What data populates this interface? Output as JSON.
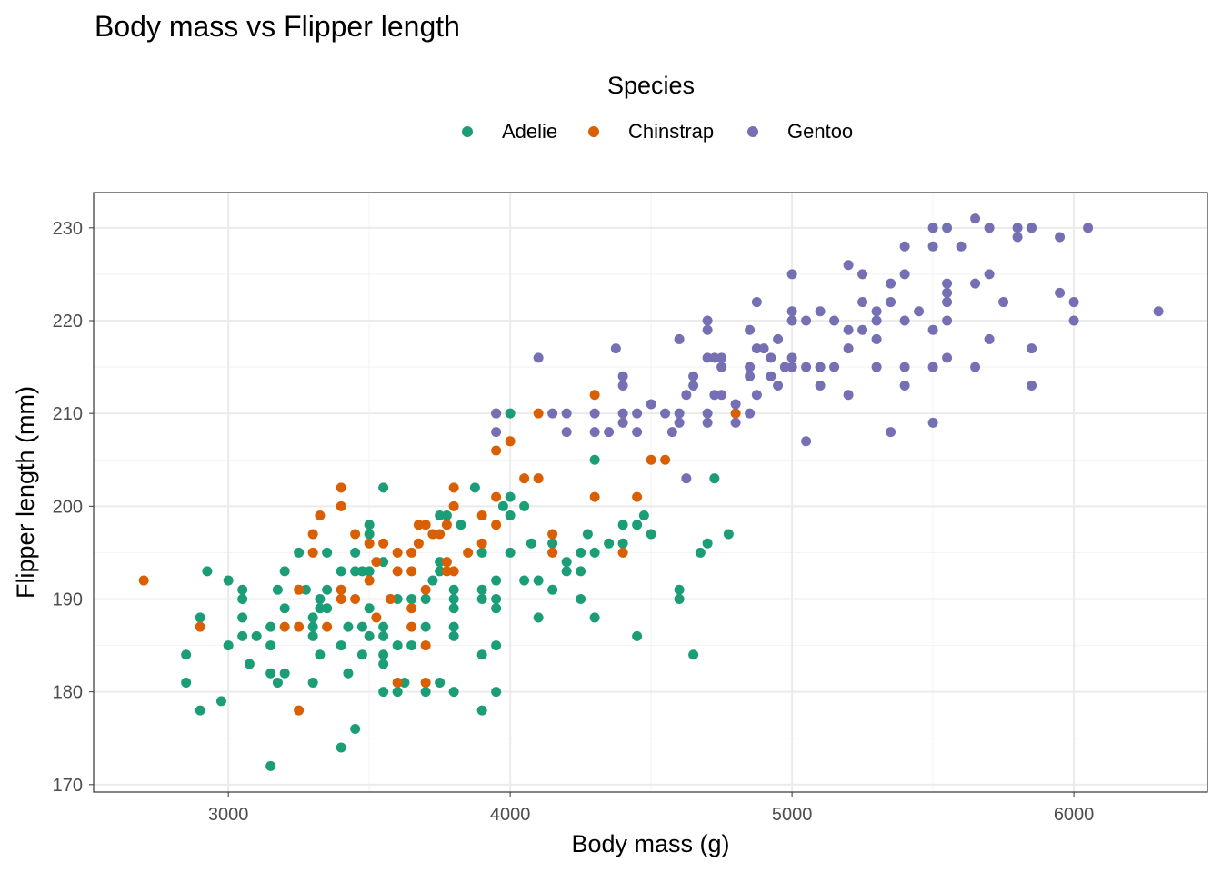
{
  "chart_data": {
    "type": "scatter",
    "title": "Body mass vs Flipper length",
    "xlabel": "Body mass (g)",
    "ylabel": "Flipper length (mm)",
    "xlim": [
      2522,
      6474
    ],
    "ylim": [
      169.2,
      233.8
    ],
    "xticks": [
      3000,
      4000,
      5000,
      6000
    ],
    "yticks": [
      170,
      180,
      190,
      200,
      210,
      220,
      230
    ],
    "grid": true,
    "legend": {
      "title": "Species",
      "position": "top"
    },
    "series": [
      {
        "name": "Adelie",
        "color": "#1B9E77",
        "points": [
          [
            2850,
            184
          ],
          [
            2850,
            181
          ],
          [
            2900,
            188
          ],
          [
            2900,
            178
          ],
          [
            2925,
            193
          ],
          [
            2975,
            179
          ],
          [
            3000,
            192
          ],
          [
            3000,
            185
          ],
          [
            3050,
            191
          ],
          [
            3050,
            190
          ],
          [
            3050,
            188
          ],
          [
            3050,
            186
          ],
          [
            3075,
            183
          ],
          [
            3100,
            186
          ],
          [
            3150,
            187
          ],
          [
            3150,
            185
          ],
          [
            3150,
            182
          ],
          [
            3150,
            172
          ],
          [
            3175,
            191
          ],
          [
            3175,
            181
          ],
          [
            3200,
            193
          ],
          [
            3200,
            189
          ],
          [
            3200,
            182
          ],
          [
            3250,
            195
          ],
          [
            3275,
            191
          ],
          [
            3300,
            188
          ],
          [
            3300,
            187
          ],
          [
            3300,
            186
          ],
          [
            3300,
            181
          ],
          [
            3325,
            190
          ],
          [
            3325,
            189
          ],
          [
            3325,
            184
          ],
          [
            3350,
            195
          ],
          [
            3350,
            191
          ],
          [
            3350,
            189
          ],
          [
            3400,
            193
          ],
          [
            3400,
            185
          ],
          [
            3400,
            174
          ],
          [
            3425,
            187
          ],
          [
            3425,
            182
          ],
          [
            3450,
            195
          ],
          [
            3450,
            193
          ],
          [
            3450,
            176
          ],
          [
            3475,
            193
          ],
          [
            3475,
            187
          ],
          [
            3475,
            184
          ],
          [
            3500,
            198
          ],
          [
            3500,
            197
          ],
          [
            3500,
            193
          ],
          [
            3500,
            189
          ],
          [
            3500,
            186
          ],
          [
            3550,
            202
          ],
          [
            3550,
            194
          ],
          [
            3550,
            187
          ],
          [
            3550,
            186
          ],
          [
            3550,
            184
          ],
          [
            3550,
            183
          ],
          [
            3550,
            180
          ],
          [
            3600,
            190
          ],
          [
            3600,
            185
          ],
          [
            3600,
            180
          ],
          [
            3625,
            181
          ],
          [
            3650,
            190
          ],
          [
            3650,
            185
          ],
          [
            3700,
            190
          ],
          [
            3700,
            187
          ],
          [
            3700,
            180
          ],
          [
            3725,
            192
          ],
          [
            3750,
            199
          ],
          [
            3750,
            194
          ],
          [
            3750,
            193
          ],
          [
            3750,
            181
          ],
          [
            3775,
            199
          ],
          [
            3800,
            191
          ],
          [
            3800,
            190
          ],
          [
            3800,
            189
          ],
          [
            3800,
            187
          ],
          [
            3800,
            186
          ],
          [
            3800,
            180
          ],
          [
            3825,
            198
          ],
          [
            3875,
            202
          ],
          [
            3900,
            195
          ],
          [
            3900,
            191
          ],
          [
            3900,
            190
          ],
          [
            3900,
            184
          ],
          [
            3900,
            178
          ],
          [
            3950,
            192
          ],
          [
            3950,
            190
          ],
          [
            3950,
            189
          ],
          [
            3950,
            185
          ],
          [
            3950,
            180
          ],
          [
            3975,
            200
          ],
          [
            4000,
            210
          ],
          [
            4000,
            201
          ],
          [
            4000,
            199
          ],
          [
            4000,
            195
          ],
          [
            4050,
            200
          ],
          [
            4050,
            192
          ],
          [
            4075,
            196
          ],
          [
            4100,
            192
          ],
          [
            4100,
            188
          ],
          [
            4150,
            196
          ],
          [
            4150,
            191
          ],
          [
            4200,
            194
          ],
          [
            4200,
            193
          ],
          [
            4250,
            195
          ],
          [
            4250,
            193
          ],
          [
            4250,
            190
          ],
          [
            4275,
            197
          ],
          [
            4300,
            205
          ],
          [
            4300,
            195
          ],
          [
            4300,
            188
          ],
          [
            4350,
            196
          ],
          [
            4400,
            198
          ],
          [
            4400,
            196
          ],
          [
            4450,
            198
          ],
          [
            4450,
            186
          ],
          [
            4475,
            199
          ],
          [
            4500,
            197
          ],
          [
            4600,
            191
          ],
          [
            4600,
            190
          ],
          [
            4650,
            184
          ],
          [
            4675,
            195
          ],
          [
            4700,
            196
          ],
          [
            4725,
            203
          ],
          [
            4775,
            197
          ]
        ]
      },
      {
        "name": "Chinstrap",
        "color": "#D95F02",
        "points": [
          [
            2700,
            192
          ],
          [
            2900,
            187
          ],
          [
            3250,
            191
          ],
          [
            3250,
            187
          ],
          [
            3250,
            178
          ],
          [
            3200,
            187
          ],
          [
            3300,
            197
          ],
          [
            3300,
            195
          ],
          [
            3325,
            199
          ],
          [
            3350,
            187
          ],
          [
            3400,
            202
          ],
          [
            3400,
            200
          ],
          [
            3400,
            191
          ],
          [
            3400,
            190
          ],
          [
            3450,
            197
          ],
          [
            3450,
            190
          ],
          [
            3500,
            196
          ],
          [
            3500,
            192
          ],
          [
            3525,
            194
          ],
          [
            3525,
            188
          ],
          [
            3550,
            196
          ],
          [
            3575,
            190
          ],
          [
            3600,
            195
          ],
          [
            3600,
            193
          ],
          [
            3600,
            181
          ],
          [
            3650,
            195
          ],
          [
            3650,
            193
          ],
          [
            3650,
            189
          ],
          [
            3650,
            187
          ],
          [
            3675,
            196
          ],
          [
            3675,
            198
          ],
          [
            3700,
            198
          ],
          [
            3700,
            191
          ],
          [
            3700,
            185
          ],
          [
            3700,
            181
          ],
          [
            3725,
            197
          ],
          [
            3750,
            197
          ],
          [
            3775,
            198
          ],
          [
            3775,
            194
          ],
          [
            3775,
            193
          ],
          [
            3800,
            202
          ],
          [
            3800,
            200
          ],
          [
            3800,
            193
          ],
          [
            3850,
            195
          ],
          [
            3900,
            199
          ],
          [
            3900,
            196
          ],
          [
            3950,
            210
          ],
          [
            3950,
            206
          ],
          [
            3950,
            201
          ],
          [
            3950,
            198
          ],
          [
            4000,
            207
          ],
          [
            4050,
            203
          ],
          [
            4100,
            210
          ],
          [
            4100,
            203
          ],
          [
            4150,
            197
          ],
          [
            4150,
            195
          ],
          [
            4300,
            212
          ],
          [
            4300,
            201
          ],
          [
            4400,
            195
          ],
          [
            4450,
            201
          ],
          [
            4500,
            205
          ],
          [
            4550,
            205
          ],
          [
            4800,
            210
          ]
        ]
      },
      {
        "name": "Gentoo",
        "color": "#7570B3",
        "points": [
          [
            6300,
            221
          ],
          [
            6050,
            230
          ],
          [
            6000,
            222
          ],
          [
            6000,
            220
          ],
          [
            5950,
            229
          ],
          [
            5950,
            223
          ],
          [
            5850,
            230
          ],
          [
            5850,
            217
          ],
          [
            5850,
            213
          ],
          [
            5800,
            230
          ],
          [
            5800,
            229
          ],
          [
            5750,
            222
          ],
          [
            5700,
            230
          ],
          [
            5700,
            225
          ],
          [
            5700,
            218
          ],
          [
            5650,
            231
          ],
          [
            5650,
            224
          ],
          [
            5650,
            215
          ],
          [
            5600,
            228
          ],
          [
            5550,
            230
          ],
          [
            5550,
            224
          ],
          [
            5550,
            223
          ],
          [
            5550,
            222
          ],
          [
            5550,
            220
          ],
          [
            5550,
            216
          ],
          [
            5500,
            230
          ],
          [
            5500,
            228
          ],
          [
            5500,
            219
          ],
          [
            5500,
            215
          ],
          [
            5500,
            209
          ],
          [
            5450,
            221
          ],
          [
            5400,
            228
          ],
          [
            5400,
            225
          ],
          [
            5400,
            220
          ],
          [
            5400,
            215
          ],
          [
            5400,
            213
          ],
          [
            5350,
            224
          ],
          [
            5350,
            222
          ],
          [
            5350,
            208
          ],
          [
            5300,
            221
          ],
          [
            5300,
            220
          ],
          [
            5300,
            218
          ],
          [
            5300,
            215
          ],
          [
            5250,
            225
          ],
          [
            5250,
            222
          ],
          [
            5250,
            219
          ],
          [
            5200,
            226
          ],
          [
            5200,
            219
          ],
          [
            5200,
            217
          ],
          [
            5200,
            212
          ],
          [
            5150,
            220
          ],
          [
            5150,
            215
          ],
          [
            5100,
            221
          ],
          [
            5100,
            215
          ],
          [
            5100,
            213
          ],
          [
            5050,
            220
          ],
          [
            5050,
            215
          ],
          [
            5050,
            207
          ],
          [
            5000,
            225
          ],
          [
            5000,
            221
          ],
          [
            5000,
            220
          ],
          [
            5000,
            216
          ],
          [
            5000,
            215
          ],
          [
            4975,
            215
          ],
          [
            4950,
            218
          ],
          [
            4950,
            213
          ],
          [
            4925,
            216
          ],
          [
            4925,
            214
          ],
          [
            4900,
            217
          ],
          [
            4875,
            217
          ],
          [
            4875,
            222
          ],
          [
            4875,
            212
          ],
          [
            4850,
            219
          ],
          [
            4850,
            215
          ],
          [
            4850,
            214
          ],
          [
            4850,
            210
          ],
          [
            4800,
            211
          ],
          [
            4800,
            209
          ],
          [
            4750,
            216
          ],
          [
            4750,
            215
          ],
          [
            4750,
            212
          ],
          [
            4725,
            216
          ],
          [
            4725,
            212
          ],
          [
            4700,
            220
          ],
          [
            4700,
            219
          ],
          [
            4700,
            216
          ],
          [
            4700,
            210
          ],
          [
            4700,
            209
          ],
          [
            4650,
            214
          ],
          [
            4650,
            213
          ],
          [
            4625,
            212
          ],
          [
            4625,
            203
          ],
          [
            4600,
            218
          ],
          [
            4600,
            210
          ],
          [
            4600,
            209
          ],
          [
            4575,
            208
          ],
          [
            4550,
            210
          ],
          [
            4500,
            211
          ],
          [
            4450,
            210
          ],
          [
            4450,
            208
          ],
          [
            4400,
            214
          ],
          [
            4400,
            213
          ],
          [
            4400,
            210
          ],
          [
            4400,
            209
          ],
          [
            4375,
            217
          ],
          [
            4350,
            208
          ],
          [
            4300,
            210
          ],
          [
            4300,
            208
          ],
          [
            4200,
            210
          ],
          [
            4200,
            208
          ],
          [
            4150,
            210
          ],
          [
            4100,
            216
          ],
          [
            3950,
            208
          ],
          [
            3950,
            210
          ]
        ]
      }
    ]
  }
}
